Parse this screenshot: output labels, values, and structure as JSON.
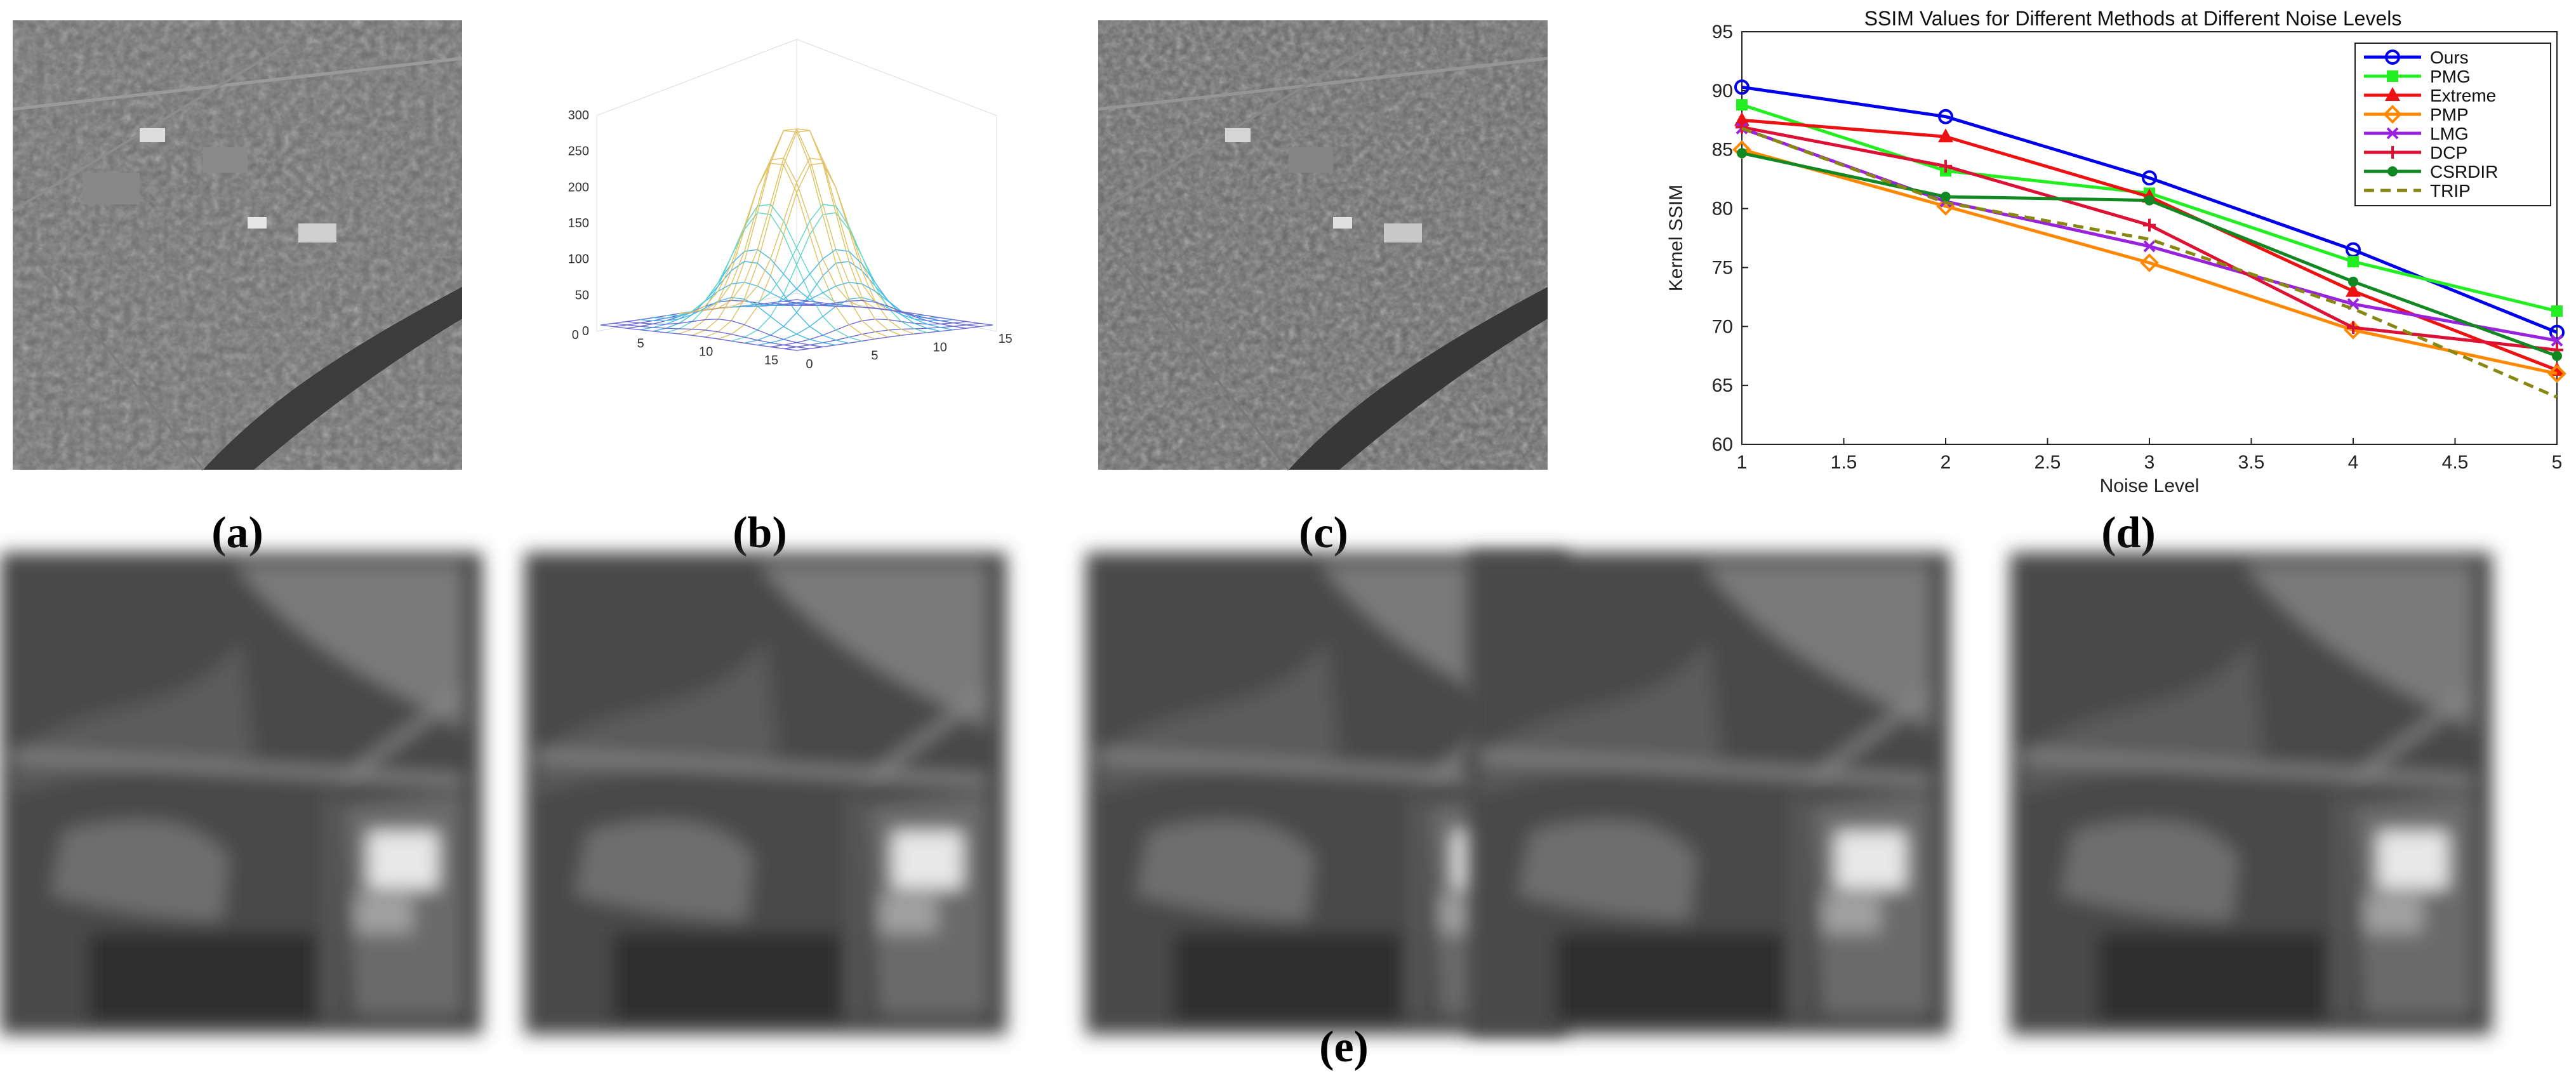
{
  "captions": {
    "a": "(a)",
    "b": "(b)",
    "c": "(c)",
    "d": "(d)",
    "e": "(e)"
  },
  "colors": {
    "ours": "#0000ee",
    "pmg": "#22ee22",
    "extreme": "#ee1111",
    "pmp": "#ff8800",
    "lmg": "#9922dd",
    "dcp": "#dd1133",
    "csrdir": "#118822",
    "trip": "#888811"
  },
  "surface3d": {
    "z_ticks": [
      "0",
      "50",
      "100",
      "150",
      "200",
      "250",
      "300"
    ],
    "left_ticks": [
      "0",
      "5",
      "10",
      "15"
    ],
    "right_ticks": [
      "0",
      "5",
      "10",
      "15"
    ]
  },
  "chart_data": {
    "type": "line",
    "title": "SSIM Values for Different Methods at Different Noise Levels",
    "xlabel": "Noise Level",
    "ylabel": "Kernel SSIM",
    "xlim": [
      1,
      5
    ],
    "ylim": [
      60,
      95
    ],
    "x_ticks": [
      "1",
      "1.5",
      "2",
      "2.5",
      "3",
      "3.5",
      "4",
      "4.5",
      "5"
    ],
    "y_ticks": [
      "60",
      "65",
      "70",
      "75",
      "80",
      "85",
      "90",
      "95"
    ],
    "x": [
      1,
      2,
      3,
      4,
      5
    ],
    "legend_position": "top-right",
    "series": [
      {
        "name": "Ours",
        "values": [
          90.3,
          87.8,
          82.6,
          76.5,
          69.5
        ],
        "color": "#0000ee",
        "marker": "circle",
        "dash": false
      },
      {
        "name": "PMG",
        "values": [
          88.8,
          83.2,
          81.3,
          75.5,
          71.3
        ],
        "color": "#22ee22",
        "marker": "square",
        "dash": false
      },
      {
        "name": "Extreme",
        "values": [
          87.5,
          86.1,
          81.0,
          73.0,
          66.3
        ],
        "color": "#ee1111",
        "marker": "triangle",
        "dash": false
      },
      {
        "name": "PMP",
        "values": [
          85.0,
          80.2,
          75.4,
          69.7,
          66.0
        ],
        "color": "#ff8800",
        "marker": "diamond",
        "dash": false
      },
      {
        "name": "LMG",
        "values": [
          86.8,
          80.6,
          76.8,
          71.9,
          68.8
        ],
        "color": "#9922dd",
        "marker": "x",
        "dash": false
      },
      {
        "name": "DCP",
        "values": [
          86.9,
          83.6,
          78.6,
          69.9,
          68.0
        ],
        "color": "#dd1133",
        "marker": "plus",
        "dash": false
      },
      {
        "name": "CSRDIR",
        "values": [
          84.7,
          81.0,
          80.7,
          73.8,
          67.5
        ],
        "color": "#118822",
        "marker": "dot",
        "dash": false
      },
      {
        "name": "TRIP",
        "values": [
          86.8,
          80.5,
          77.4,
          71.5,
          64.0
        ],
        "color": "#888811",
        "marker": "none",
        "dash": true
      }
    ]
  }
}
